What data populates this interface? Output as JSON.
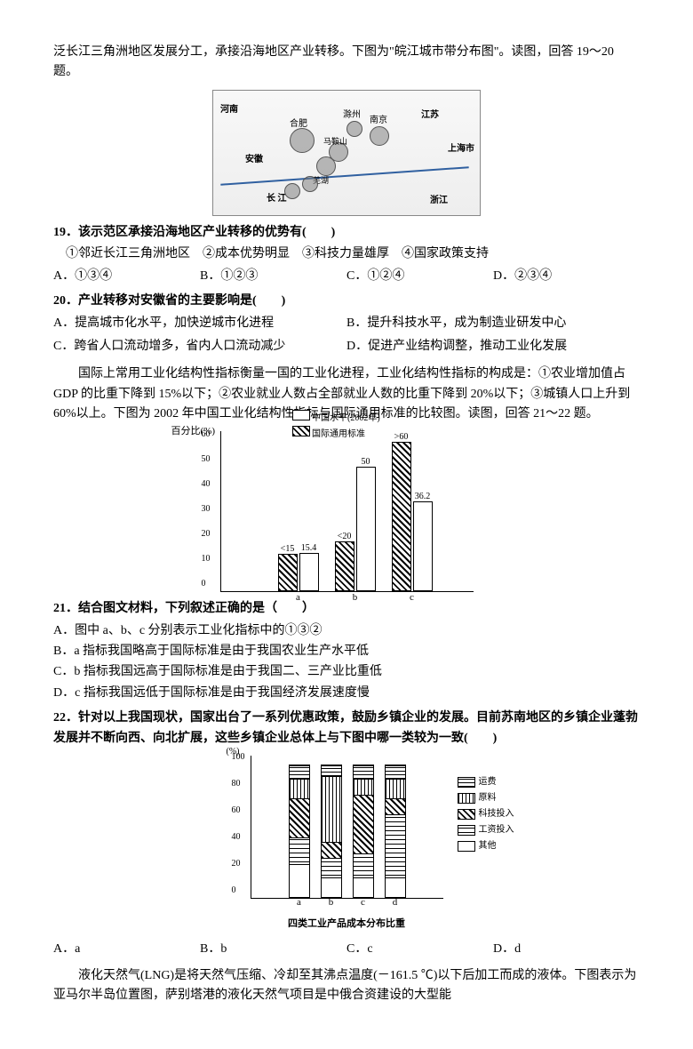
{
  "intro1": "泛长江三角洲地区发展分工，承接沿海地区产业转移。下图为\"皖江城市带分布图\"。读图，回答 19～20 题。",
  "map": {
    "labels": {
      "henan": "河南",
      "anhui": "安徽",
      "jiangsu": "江苏",
      "shanghai": "上海市",
      "zhejiang": "浙江",
      "changjiang": "长 江",
      "hefei": "合肥",
      "nanjing": "南京",
      "chuzhou": "滁州",
      "wuhu": "芜湖",
      "maanshan": "马鞍山"
    }
  },
  "q19": {
    "prompt": "19．该示范区承接沿海地区产业转移的优势有(　　)",
    "items": "　①邻近长江三角洲地区　②成本优势明显　③科技力量雄厚　④国家政策支持",
    "A": "A．①③④",
    "B": "B．①②③",
    "C": "C．①②④",
    "D": "D．②③④"
  },
  "q20": {
    "prompt": "20．产业转移对安徽省的主要影响是(　　)",
    "A": "A．提高城市化水平，加快逆城市化进程",
    "B": "B．提升科技水平，成为制造业研发中心",
    "C": "C．跨省人口流动增多，省内人口流动减少",
    "D": "D．促进产业结构调整，推动工业化发展"
  },
  "intro2": "　　国际上常用工业化结构性指标衡量一国的工业化进程，工业化结构性指标的构成是：①农业增加值占 GDP 的比重下降到 15%以下；②农业就业人数占全部就业人数的比重下降到 20%以下；③城镇人口上升到 60%以上。下图为 2002 年中国工业化结构性指标与国际通用标准的比较图。读图，回答 21～22 题。",
  "chart1": {
    "type": "bar",
    "ylabel": "百分比(%)",
    "ylim": [
      0,
      60
    ],
    "ytick_step": 10,
    "legend_white": "中国水平(2002年)",
    "legend_hatch": "国际通用标准",
    "categories": [
      "a",
      "b",
      "c"
    ],
    "series_white": [
      15.4,
      50,
      36.2
    ],
    "series_hatch": [
      15,
      20,
      60
    ],
    "hatch_labels": [
      "<15",
      "<20",
      ">60"
    ],
    "bar_colors": {
      "white": "#ffffff",
      "hatch": "#000000"
    }
  },
  "q21": {
    "prompt": "21．结合图文材料，下列叙述正确的是（　　）",
    "A": "A．图中 a、b、c 分别表示工业化指标中的①③②",
    "B": "B．a 指标我国略高于国际标准是由于我国农业生产水平低",
    "C": "C．b 指标我国远高于国际标准是由于我国二、三产业比重低",
    "D": "D．c 指标我国远低于国际标准是由于我国经济发展速度慢"
  },
  "q22": {
    "prompt": "22．针对以上我国现状，国家出台了一系列优惠政策，鼓励乡镇企业的发展。目前苏南地区的乡镇企业蓬勃发展并不断向西、向北扩展，这些乡镇企业总体上与下图中哪一类较为一致(　　)",
    "A": "A．a",
    "B": "B．b",
    "C": "C．c",
    "D": "D．d"
  },
  "chart2": {
    "type": "stacked_bar",
    "ylabel": "(%)",
    "ylim": [
      0,
      100
    ],
    "ytick_step": 20,
    "categories": [
      "a",
      "b",
      "c",
      "d"
    ],
    "legend": [
      "运费",
      "原料",
      "科技投入",
      "工资投入",
      "其他"
    ],
    "data": {
      "a": {
        "transport": 10,
        "raw": 15,
        "tech": 30,
        "wage": 20,
        "other": 25
      },
      "b": {
        "transport": 8,
        "raw": 50,
        "tech": 12,
        "wage": 15,
        "other": 15
      },
      "c": {
        "transport": 10,
        "raw": 12,
        "tech": 45,
        "wage": 18,
        "other": 15
      },
      "d": {
        "transport": 10,
        "raw": 15,
        "tech": 12,
        "wage": 48,
        "other": 15
      }
    },
    "caption": "四类工业产品成本分布比重",
    "seg_colors": {
      "transport": "#000000",
      "raw": "#444444",
      "tech": "#666666",
      "wage": "#888888",
      "other": "#ffffff"
    }
  },
  "intro3": "　　液化天然气(LNG)是将天然气压缩、冷却至其沸点温度(－161.5 ℃)以下后加工而成的液体。下图表示为亚马尔半岛位置图，萨别塔港的液化天然气项目是中俄合资建设的大型能"
}
